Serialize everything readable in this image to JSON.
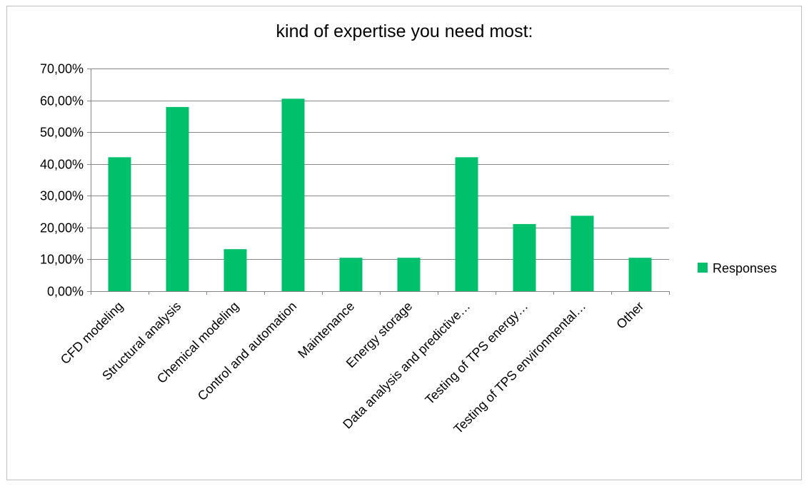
{
  "chart_data": {
    "type": "bar",
    "title": "kind of expertise you need most:",
    "xlabel": "",
    "ylabel": "",
    "categories": [
      "CFD modeling",
      "Structural analysis",
      "Chemical modeling",
      "Control and automation",
      "Maintenance",
      "Energy storage",
      "Data analysis and predictive…",
      "Testing of TPS energy…",
      "Testing of TPS environmental…",
      "Other"
    ],
    "series": [
      {
        "name": "Responses",
        "color": "#00c06b",
        "values": [
          42.1,
          57.9,
          13.2,
          60.5,
          10.5,
          10.5,
          42.1,
          21.1,
          23.7,
          10.5
        ]
      }
    ],
    "ylim": [
      0,
      70
    ],
    "yticks": [
      0,
      10,
      20,
      30,
      40,
      50,
      60,
      70
    ],
    "ytick_labels": [
      "0,00%",
      "10,00%",
      "20,00%",
      "30,00%",
      "40,00%",
      "50,00%",
      "60,00%",
      "70,00%"
    ],
    "grid": true,
    "legend_position": "right"
  }
}
